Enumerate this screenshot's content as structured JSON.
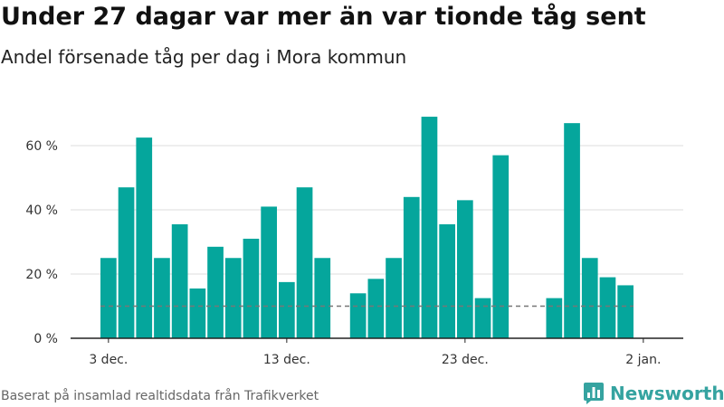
{
  "header": {
    "title": "Under 27 dagar var mer än var tionde tåg sent",
    "subtitle": "Andel försenade tåg per dag i Mora kommun"
  },
  "footer": {
    "source": "Baserat på insamlad realtidsdata från Trafikverket",
    "brand": "Newsworthy"
  },
  "colors": {
    "bar": "#05a69c",
    "threshold": "#777777",
    "grid": "#dddddd",
    "axis": "#222222",
    "brand": "#35a3a0"
  },
  "chart_data": {
    "type": "bar",
    "title": "Under 27 dagar var mer än var tionde tåg sent",
    "subtitle": "Andel försenade tåg per dag i Mora kommun",
    "xlabel": "",
    "ylabel": "",
    "x": [
      "2022-12-03",
      "2022-12-04",
      "2022-12-05",
      "2022-12-06",
      "2022-12-07",
      "2022-12-08",
      "2022-12-09",
      "2022-12-10",
      "2022-12-11",
      "2022-12-12",
      "2022-12-13",
      "2022-12-14",
      "2022-12-15",
      "2022-12-16",
      "2022-12-17",
      "2022-12-18",
      "2022-12-19",
      "2022-12-20",
      "2022-12-21",
      "2022-12-22",
      "2022-12-23",
      "2022-12-24",
      "2022-12-25",
      "2022-12-26",
      "2022-12-27",
      "2022-12-28",
      "2022-12-29",
      "2022-12-30",
      "2022-12-31",
      "2023-01-01",
      "2023-01-02"
    ],
    "values": [
      25,
      47,
      62.5,
      25,
      35.5,
      15.5,
      28.5,
      25,
      31,
      41,
      17.5,
      47,
      25,
      null,
      14,
      18.5,
      25,
      44,
      69,
      35.5,
      43,
      12.5,
      57,
      null,
      null,
      12.5,
      67,
      25,
      19,
      16.5,
      null
    ],
    "threshold": 10,
    "ylim": [
      0,
      72
    ],
    "yticks": [
      0,
      20,
      40,
      60
    ],
    "ytick_labels": [
      "0 %",
      "20 %",
      "40 %",
      "60 %"
    ],
    "xticks": [
      "2022-12-03",
      "2022-12-13",
      "2022-12-23",
      "2023-01-02"
    ],
    "xtick_labels": [
      "3 dec.",
      "13 dec.",
      "23 dec.",
      "2 jan."
    ],
    "grid": true,
    "legend": "none"
  }
}
